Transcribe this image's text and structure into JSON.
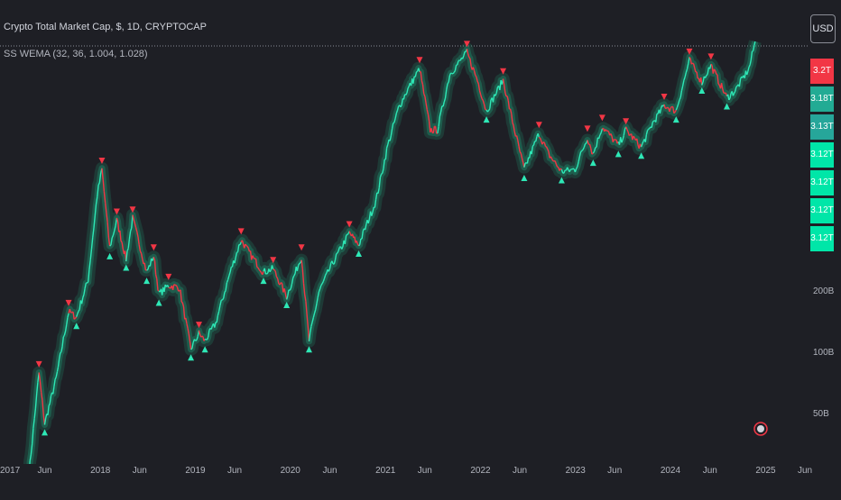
{
  "header": {
    "title": "Crypto Total Market Cap, $, 1D, CRYPTOCAP",
    "indicator": "SS WEMA (32, 36, 1.004, 1.028)"
  },
  "currency_button": "USD",
  "price_tags": [
    {
      "label": "3.2T",
      "color": "#f23645"
    },
    {
      "label": "3.18T",
      "color": "#22ab94"
    },
    {
      "label": "3.13T",
      "color": "#26a69a"
    },
    {
      "label": "3.12T",
      "color": "#00e6a8"
    },
    {
      "label": "3.12T",
      "color": "#00e6a8"
    },
    {
      "label": "3.12T",
      "color": "#00e6a8"
    },
    {
      "label": "3.12T",
      "color": "#00e6a8"
    }
  ],
  "colors": {
    "up": "#2ee8b6",
    "down": "#f23645",
    "band": "#1f8a6a",
    "background": "#1e1f25"
  },
  "chart_data": {
    "type": "line",
    "title": "Crypto Total Market Cap, $, 1D, CRYPTOCAP",
    "scale": "log",
    "y_ticks": [
      {
        "value": 200000000000,
        "label": "200B"
      },
      {
        "value": 100000000000,
        "label": "100B"
      },
      {
        "value": 50000000000,
        "label": "50B"
      }
    ],
    "x_ticks": [
      "2017",
      "Jun",
      "2018",
      "Jun",
      "2019",
      "Jun",
      "2020",
      "Jun",
      "2021",
      "Jun",
      "2022",
      "Jun",
      "2023",
      "Jun",
      "2024",
      "Jun",
      "2025",
      "Jun"
    ],
    "x_tick_dates": [
      "2017-01-01",
      "2017-06-01",
      "2018-01-01",
      "2018-06-01",
      "2019-01-01",
      "2019-06-01",
      "2020-01-01",
      "2020-06-01",
      "2021-01-01",
      "2021-06-01",
      "2022-01-01",
      "2022-06-01",
      "2023-01-01",
      "2023-06-01",
      "2024-01-01",
      "2024-06-01",
      "2025-01-01",
      "2025-06-01"
    ],
    "series": [
      {
        "points": [
          [
            "2017-04-01",
            25
          ],
          [
            "2017-05-10",
            80
          ],
          [
            "2017-06-01",
            45
          ],
          [
            "2017-07-15",
            75
          ],
          [
            "2017-09-01",
            160
          ],
          [
            "2017-10-01",
            150
          ],
          [
            "2017-11-15",
            230
          ],
          [
            "2017-12-20",
            600
          ],
          [
            "2018-01-07",
            800
          ],
          [
            "2018-02-06",
            330
          ],
          [
            "2018-03-05",
            450
          ],
          [
            "2018-04-10",
            290
          ],
          [
            "2018-05-05",
            460
          ],
          [
            "2018-06-28",
            250
          ],
          [
            "2018-07-25",
            300
          ],
          [
            "2018-08-14",
            195
          ],
          [
            "2018-09-20",
            215
          ],
          [
            "2018-11-01",
            210
          ],
          [
            "2018-12-15",
            105
          ],
          [
            "2019-01-15",
            125
          ],
          [
            "2019-02-07",
            115
          ],
          [
            "2019-03-20",
            140
          ],
          [
            "2019-05-15",
            250
          ],
          [
            "2019-06-26",
            360
          ],
          [
            "2019-08-05",
            300
          ],
          [
            "2019-09-20",
            250
          ],
          [
            "2019-10-27",
            260
          ],
          [
            "2019-12-18",
            190
          ],
          [
            "2020-02-13",
            300
          ],
          [
            "2020-03-13",
            115
          ],
          [
            "2020-04-20",
            200
          ],
          [
            "2020-06-01",
            260
          ],
          [
            "2020-08-15",
            390
          ],
          [
            "2020-09-20",
            340
          ],
          [
            "2020-11-25",
            560
          ],
          [
            "2021-01-10",
            1050
          ],
          [
            "2021-02-20",
            1600
          ],
          [
            "2021-03-20",
            1900
          ],
          [
            "2021-05-12",
            2500
          ],
          [
            "2021-06-22",
            1250
          ],
          [
            "2021-07-20",
            1250
          ],
          [
            "2021-09-05",
            2350
          ],
          [
            "2021-11-10",
            3000
          ],
          [
            "2021-12-20",
            2200
          ],
          [
            "2022-01-24",
            1550
          ],
          [
            "2022-03-29",
            2200
          ],
          [
            "2022-05-12",
            1250
          ],
          [
            "2022-06-18",
            800
          ],
          [
            "2022-08-14",
            1200
          ],
          [
            "2022-09-20",
            950
          ],
          [
            "2022-11-09",
            780
          ],
          [
            "2022-12-31",
            800
          ],
          [
            "2023-02-16",
            1150
          ],
          [
            "2023-03-10",
            950
          ],
          [
            "2023-04-14",
            1300
          ],
          [
            "2023-06-15",
            1050
          ],
          [
            "2023-07-14",
            1250
          ],
          [
            "2023-09-11",
            1030
          ],
          [
            "2023-10-25",
            1350
          ],
          [
            "2023-12-08",
            1650
          ],
          [
            "2024-01-23",
            1550
          ],
          [
            "2024-03-14",
            2750
          ],
          [
            "2024-05-01",
            2150
          ],
          [
            "2024-06-05",
            2600
          ],
          [
            "2024-08-05",
            1800
          ],
          [
            "2024-09-06",
            1950
          ],
          [
            "2024-10-29",
            2500
          ],
          [
            "2024-11-22",
            3400
          ]
        ]
      }
    ]
  }
}
